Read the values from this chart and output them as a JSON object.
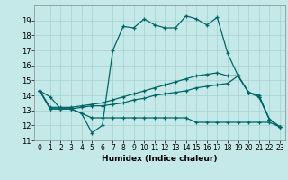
{
  "xlabel": "Humidex (Indice chaleur)",
  "xlim": [
    -0.5,
    23.5
  ],
  "ylim": [
    11,
    20
  ],
  "yticks": [
    11,
    12,
    13,
    14,
    15,
    16,
    17,
    18,
    19
  ],
  "xticks": [
    0,
    1,
    2,
    3,
    4,
    5,
    6,
    7,
    8,
    9,
    10,
    11,
    12,
    13,
    14,
    15,
    16,
    17,
    18,
    19,
    20,
    21,
    22,
    23
  ],
  "background_color": "#c5e8e8",
  "grid_color": "#aad4d4",
  "line_color": "#006666",
  "series": [
    [
      14.3,
      13.9,
      13.1,
      13.1,
      12.8,
      11.5,
      12.0,
      17.0,
      18.6,
      18.5,
      19.1,
      18.7,
      18.5,
      18.5,
      19.3,
      19.1,
      18.7,
      19.2,
      16.8,
      15.3,
      14.2,
      13.9,
      12.4,
      11.9
    ],
    [
      14.3,
      13.1,
      13.1,
      13.1,
      13.2,
      13.3,
      13.3,
      13.4,
      13.5,
      13.7,
      13.8,
      14.0,
      14.1,
      14.2,
      14.3,
      14.5,
      14.6,
      14.7,
      14.8,
      15.3,
      14.2,
      14.0,
      12.4,
      11.9
    ],
    [
      14.3,
      13.1,
      13.1,
      13.1,
      12.8,
      12.5,
      12.5,
      12.5,
      12.5,
      12.5,
      12.5,
      12.5,
      12.5,
      12.5,
      12.5,
      12.2,
      12.2,
      12.2,
      12.2,
      12.2,
      12.2,
      12.2,
      12.2,
      11.9
    ],
    [
      14.3,
      13.2,
      13.2,
      13.2,
      13.3,
      13.4,
      13.5,
      13.7,
      13.9,
      14.1,
      14.3,
      14.5,
      14.7,
      14.9,
      15.1,
      15.3,
      15.4,
      15.5,
      15.3,
      15.3,
      14.2,
      13.9,
      12.4,
      11.9
    ]
  ]
}
